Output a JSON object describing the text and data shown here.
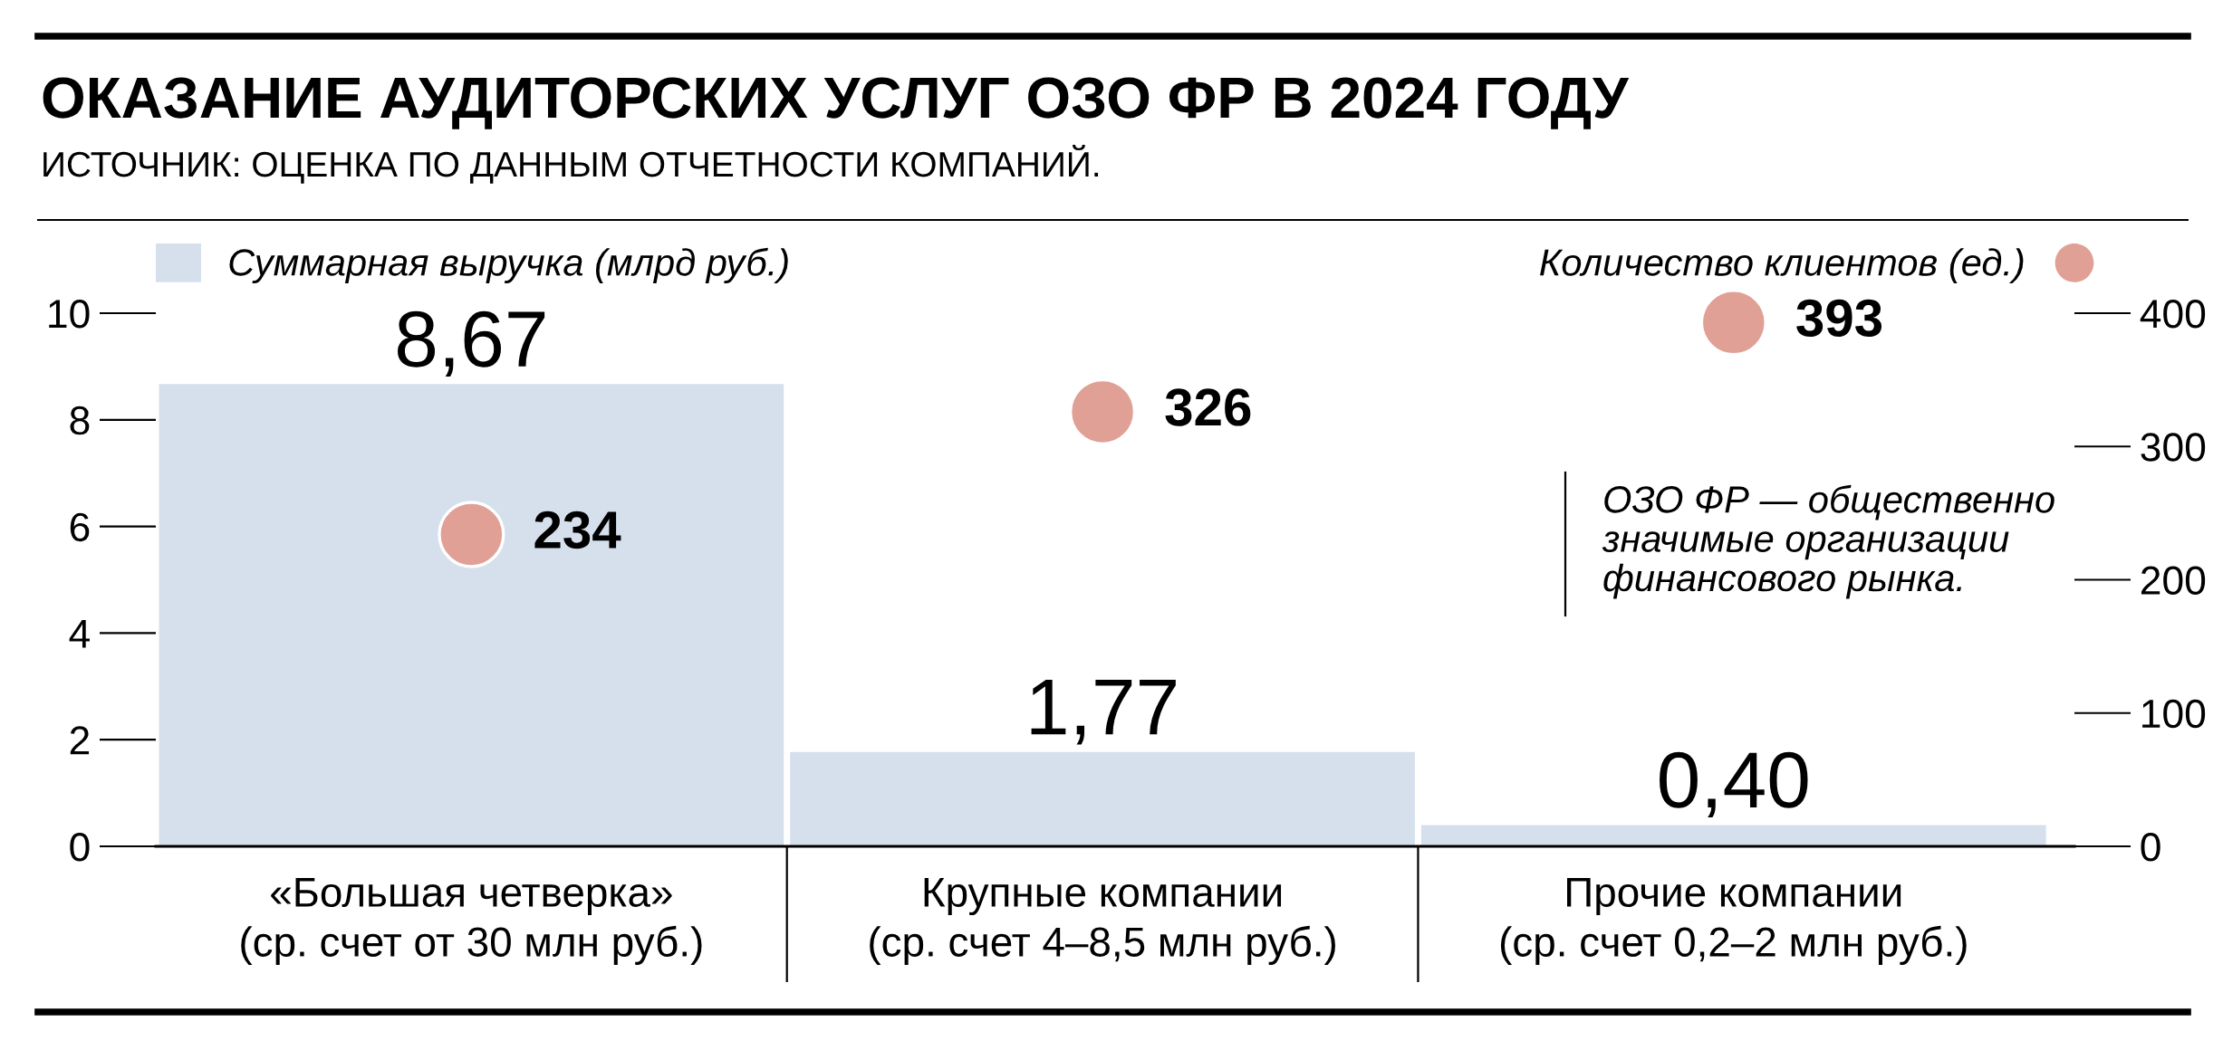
{
  "chart_data": {
    "type": "bar",
    "title": "ОКАЗАНИЕ АУДИТОРСКИХ УСЛУГ ОЗО ФР В 2024 ГОДУ",
    "annotations": [
      "ИСТОЧНИК: ОЦЕНКА ПО ДАННЫМ ОТЧЕТНОСТИ КОМПАНИЙ.",
      "ОЗО ФР — общественно\nзначимые организации\nфинансового рынка."
    ],
    "categories": [
      "«Большая четверка»\n(ср. счет от 30 млн руб.)",
      "Крупные компании\n(ср. счет 4–8,5 млн руб.)",
      "Прочие компании\n(ср. счет 0,2–2 млн руб.)"
    ],
    "series": [
      {
        "name": "Суммарная выручка (млрд руб.)",
        "color": "#d6e0ed",
        "values": [
          8.67,
          1.77,
          0.4
        ],
        "value_labels": [
          "8,67",
          "1,77",
          "0,40"
        ]
      },
      {
        "name": "Количество клиентов (ед.)",
        "type": "scatter",
        "axis": "y2",
        "color": "#e0a095",
        "values": [
          234,
          326,
          393
        ],
        "value_labels": [
          "234",
          "326",
          "393"
        ]
      }
    ],
    "ylim": [
      0,
      10
    ],
    "yticks": [
      0,
      2,
      4,
      6,
      8,
      10
    ],
    "y2lim": [
      0,
      400
    ],
    "y2ticks": [
      0,
      100,
      200,
      300,
      400
    ],
    "legend": "top",
    "marker": "circle"
  }
}
